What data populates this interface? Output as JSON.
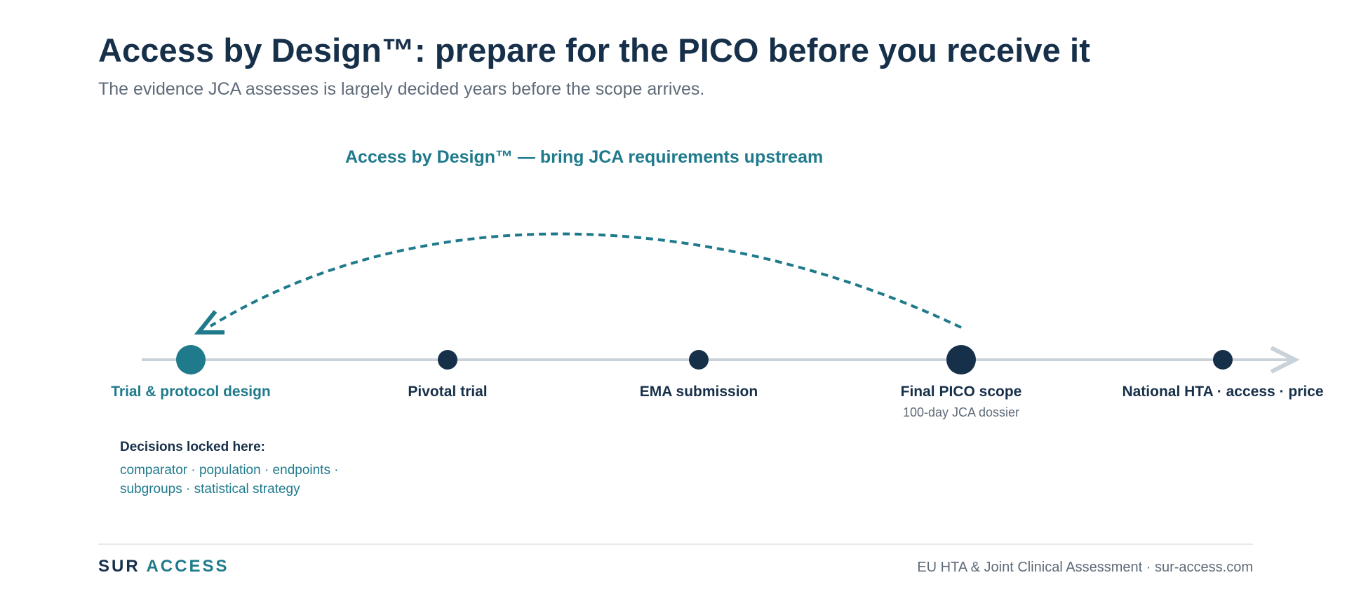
{
  "header": {
    "title": "Access by Design™: prepare for the PICO before you receive it",
    "subtitle": "The evidence JCA assesses is largely decided years before the scope arrives."
  },
  "callout": {
    "text": "Access by Design™ — bring JCA requirements upstream"
  },
  "timeline": {
    "milestones": [
      {
        "label": "Trial & protocol design",
        "sublabel": "",
        "emphasis": "accent"
      },
      {
        "label": "Pivotal trial",
        "sublabel": "",
        "emphasis": "normal"
      },
      {
        "label": "EMA submission",
        "sublabel": "",
        "emphasis": "normal"
      },
      {
        "label": "Final PICO scope",
        "sublabel": "100-day JCA dossier",
        "emphasis": "major"
      },
      {
        "label": "National HTA · access · price",
        "sublabel": "",
        "emphasis": "normal"
      }
    ]
  },
  "decisions": {
    "heading": "Decisions locked here:",
    "items": "comparator · population · endpoints · subgroups · statistical strategy"
  },
  "footer": {
    "brand_part1": "SUR",
    "brand_part2": "ACCESS",
    "right_text": "EU HTA & Joint Clinical Assessment · sur-access.com"
  },
  "colors": {
    "navy": "#17304a",
    "teal": "#1f7a8c",
    "gray_text": "#5f6b79",
    "axis": "#c9d1d9"
  },
  "icons": {
    "timeline_arrowhead": "chevron-right-icon",
    "upstream_arrowhead": "arrowhead-icon"
  }
}
